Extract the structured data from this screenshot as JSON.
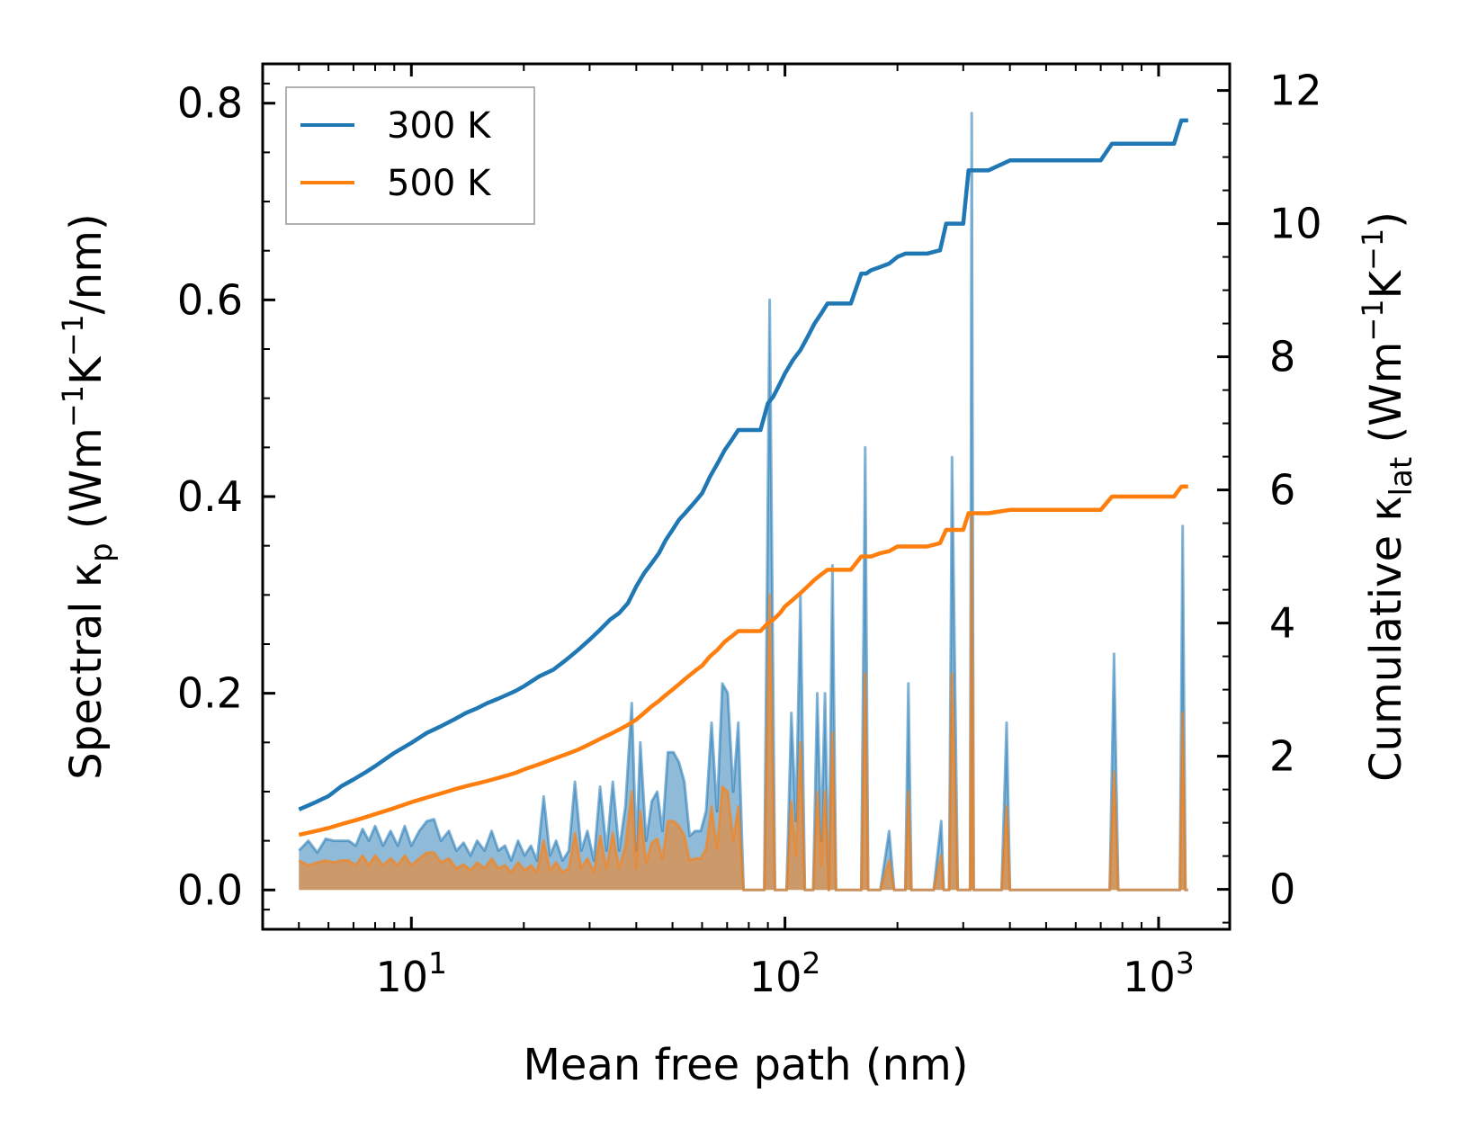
{
  "chart_data": {
    "type": "line",
    "xscale": "log",
    "xlabel": "Mean free path (nm)",
    "ylabel_left": {
      "main": "Spectral κ",
      "sub": "p",
      "unit_prefix": " (Wm",
      "exp1": "−1",
      "k": "K",
      "exp2": "−1",
      "unit_suffix": "/nm)"
    },
    "ylabel_right": {
      "main": "Cumulative κ",
      "sub": "lat",
      "unit_prefix": " (Wm",
      "exp1": "−1",
      "k": "K",
      "exp2": "−1",
      "unit_suffix": ")"
    },
    "xlim": [
      4.0,
      1550
    ],
    "ylim_left": [
      -0.04,
      0.84
    ],
    "ylim_right": [
      -0.6,
      12.4
    ],
    "x_ticks": [
      {
        "value": 10,
        "base": "10",
        "exp": "1"
      },
      {
        "value": 100,
        "base": "10",
        "exp": "2"
      },
      {
        "value": 1000,
        "base": "10",
        "exp": "3"
      }
    ],
    "y_left_ticks": [
      {
        "value": 0.0,
        "label": "0.0"
      },
      {
        "value": 0.2,
        "label": "0.2"
      },
      {
        "value": 0.4,
        "label": "0.4"
      },
      {
        "value": 0.6,
        "label": "0.6"
      },
      {
        "value": 0.8,
        "label": "0.8"
      }
    ],
    "y_right_ticks": [
      {
        "value": 0,
        "label": "0"
      },
      {
        "value": 2,
        "label": "2"
      },
      {
        "value": 4,
        "label": "4"
      },
      {
        "value": 6,
        "label": "6"
      },
      {
        "value": 8,
        "label": "8"
      },
      {
        "value": 10,
        "label": "10"
      },
      {
        "value": 12,
        "label": "12"
      }
    ],
    "legend": {
      "position": "top-left",
      "entries": [
        "300 K",
        "500 K"
      ]
    },
    "colors": {
      "300K": "#1f77b4",
      "500K": "#ff7f0e",
      "300K_fill": "#1f77b4",
      "500K_fill": "#ff7f0e"
    },
    "series": [
      {
        "name": "300 K",
        "axis": "right",
        "kind": "cumulative",
        "x": [
          5,
          5.5,
          6,
          6.5,
          7,
          7.5,
          8,
          9,
          10,
          11,
          12,
          13,
          14,
          15,
          16,
          17,
          18,
          19,
          20,
          22,
          24,
          26,
          28,
          30,
          32,
          34,
          36,
          38,
          40,
          42,
          44,
          46,
          48,
          50,
          52,
          54,
          56,
          58,
          60,
          63,
          66,
          69,
          72,
          75,
          78,
          82,
          86,
          90,
          93,
          95,
          97,
          100,
          105,
          110,
          115,
          120,
          125,
          130,
          135,
          140,
          150,
          160,
          165,
          170,
          180,
          190,
          200,
          210,
          220,
          240,
          260,
          270,
          300,
          310,
          320,
          350,
          400,
          450,
          500,
          600,
          700,
          750,
          800,
          900,
          1000,
          1100,
          1150,
          1200
        ],
        "y": [
          1.2,
          1.3,
          1.4,
          1.55,
          1.65,
          1.75,
          1.85,
          2.05,
          2.2,
          2.35,
          2.45,
          2.55,
          2.65,
          2.72,
          2.8,
          2.86,
          2.92,
          2.98,
          3.05,
          3.2,
          3.3,
          3.45,
          3.6,
          3.75,
          3.9,
          4.05,
          4.15,
          4.3,
          4.55,
          4.75,
          4.9,
          5.05,
          5.25,
          5.4,
          5.55,
          5.65,
          5.75,
          5.85,
          5.95,
          6.2,
          6.4,
          6.6,
          6.75,
          6.9,
          6.9,
          6.9,
          6.9,
          7.3,
          7.4,
          7.5,
          7.6,
          7.75,
          7.95,
          8.1,
          8.3,
          8.5,
          8.65,
          8.8,
          8.8,
          8.8,
          8.8,
          9.25,
          9.25,
          9.3,
          9.35,
          9.4,
          9.5,
          9.55,
          9.55,
          9.55,
          9.6,
          10.0,
          10.0,
          10.8,
          10.8,
          10.8,
          10.95,
          10.95,
          10.95,
          10.95,
          10.95,
          11.2,
          11.2,
          11.2,
          11.2,
          11.2,
          11.55,
          11.55
        ]
      },
      {
        "name": "500 K",
        "axis": "right",
        "kind": "cumulative",
        "x": [
          5,
          5.5,
          6,
          6.5,
          7,
          7.5,
          8,
          9,
          10,
          11,
          12,
          13,
          14,
          15,
          16,
          17,
          18,
          19,
          20,
          22,
          24,
          26,
          28,
          30,
          32,
          34,
          36,
          38,
          40,
          42,
          44,
          46,
          48,
          50,
          52,
          54,
          56,
          58,
          60,
          63,
          66,
          69,
          72,
          75,
          78,
          82,
          86,
          90,
          93,
          95,
          97,
          100,
          105,
          110,
          115,
          120,
          125,
          130,
          135,
          140,
          150,
          160,
          165,
          170,
          180,
          190,
          200,
          210,
          220,
          240,
          260,
          270,
          300,
          310,
          320,
          350,
          400,
          450,
          500,
          600,
          700,
          750,
          800,
          900,
          1000,
          1100,
          1150,
          1200
        ],
        "y": [
          0.82,
          0.87,
          0.92,
          0.98,
          1.03,
          1.08,
          1.13,
          1.22,
          1.31,
          1.38,
          1.44,
          1.5,
          1.55,
          1.59,
          1.63,
          1.67,
          1.71,
          1.75,
          1.8,
          1.88,
          1.96,
          2.03,
          2.1,
          2.18,
          2.26,
          2.33,
          2.4,
          2.47,
          2.55,
          2.65,
          2.75,
          2.83,
          2.92,
          3.0,
          3.08,
          3.16,
          3.23,
          3.3,
          3.36,
          3.5,
          3.6,
          3.72,
          3.8,
          3.88,
          3.88,
          3.88,
          3.88,
          4.0,
          4.05,
          4.1,
          4.15,
          4.25,
          4.35,
          4.45,
          4.55,
          4.65,
          4.73,
          4.8,
          4.8,
          4.8,
          4.8,
          5.0,
          5.0,
          5.0,
          5.05,
          5.08,
          5.15,
          5.15,
          5.15,
          5.15,
          5.2,
          5.4,
          5.4,
          5.65,
          5.65,
          5.65,
          5.7,
          5.7,
          5.7,
          5.7,
          5.7,
          5.9,
          5.9,
          5.9,
          5.9,
          5.9,
          6.05,
          6.05
        ]
      },
      {
        "name": "300 K spectral",
        "axis": "left",
        "kind": "spectral",
        "x": [
          5,
          5.3,
          5.6,
          5.9,
          6.2,
          6.5,
          6.8,
          7.1,
          7.4,
          7.7,
          8.0,
          8.4,
          8.8,
          9.2,
          9.6,
          10.0,
          10.5,
          11.0,
          11.5,
          12.0,
          12.6,
          13.2,
          13.8,
          14.4,
          15.0,
          15.7,
          16.4,
          17.1,
          17.8,
          18.5,
          19.3,
          20.1,
          20.9,
          21.7,
          22.6,
          23.5,
          24.4,
          25.4,
          26.4,
          27.4,
          28.5,
          29.6,
          30.8,
          32.0,
          33.3,
          34.6,
          36.0,
          37.4,
          38.9,
          40.0,
          41.0,
          42.5,
          44.0,
          45.5,
          47.0,
          48.6,
          50.3,
          52.0,
          53.8,
          55.6,
          57.5,
          59.5,
          61.5,
          63.6,
          65.8,
          68.0,
          70.3,
          72.7,
          75.0,
          77.5,
          80.0,
          82.0,
          85.0,
          88.0,
          91.0,
          94.0,
          96.0,
          98.0,
          101,
          104,
          107,
          110,
          113,
          116,
          119,
          122,
          125,
          128,
          131,
          134,
          137,
          140,
          150,
          160,
          164,
          167,
          171,
          180,
          190,
          196,
          200,
          210,
          214,
          218,
          230,
          250,
          262,
          266,
          270,
          275,
          280,
          290,
          300,
          310,
          313,
          316,
          320,
          330,
          360,
          380,
          392,
          400,
          420,
          500,
          600,
          700,
          740,
          760,
          780,
          800,
          900,
          1000,
          1100,
          1140,
          1160,
          1180,
          1200
        ],
        "y": [
          0.04,
          0.05,
          0.038,
          0.052,
          0.05,
          0.05,
          0.05,
          0.045,
          0.062,
          0.05,
          0.065,
          0.045,
          0.06,
          0.045,
          0.065,
          0.045,
          0.06,
          0.07,
          0.072,
          0.05,
          0.06,
          0.04,
          0.048,
          0.035,
          0.05,
          0.04,
          0.06,
          0.04,
          0.045,
          0.03,
          0.05,
          0.035,
          0.045,
          0.03,
          0.095,
          0.035,
          0.05,
          0.03,
          0.04,
          0.11,
          0.04,
          0.06,
          0.03,
          0.105,
          0.04,
          0.11,
          0.04,
          0.085,
          0.19,
          0.04,
          0.15,
          0.05,
          0.09,
          0.1,
          0.06,
          0.14,
          0.14,
          0.13,
          0.11,
          0.055,
          0.06,
          0.06,
          0.08,
          0.17,
          0.08,
          0.21,
          0.2,
          0.1,
          0.17,
          0.0,
          0.0,
          0.0,
          0.0,
          0.0,
          0.6,
          0.0,
          0.0,
          0.0,
          0.0,
          0.18,
          0.07,
          0.3,
          0.0,
          0.0,
          0.0,
          0.2,
          0.05,
          0.2,
          0.0,
          0.33,
          0.0,
          0.0,
          0.0,
          0.0,
          0.45,
          0.0,
          0.0,
          0.0,
          0.06,
          0.0,
          0.0,
          0.0,
          0.21,
          0.0,
          0.0,
          0.0,
          0.07,
          0.0,
          0.0,
          0.0,
          0.44,
          0.0,
          0.0,
          0.0,
          0.0,
          0.79,
          0.0,
          0.0,
          0.0,
          0.0,
          0.17,
          0.0,
          0.0,
          0.0,
          0.0,
          0.0,
          0.0,
          0.24,
          0.0,
          0.0,
          0.0,
          0.0,
          0.0,
          0.0,
          0.37,
          0.0,
          0.0
        ]
      },
      {
        "name": "500 K spectral",
        "axis": "left",
        "kind": "spectral",
        "x": [
          5,
          5.3,
          5.6,
          5.9,
          6.2,
          6.5,
          6.8,
          7.1,
          7.4,
          7.7,
          8.0,
          8.4,
          8.8,
          9.2,
          9.6,
          10.0,
          10.5,
          11.0,
          11.5,
          12.0,
          12.6,
          13.2,
          13.8,
          14.4,
          15.0,
          15.7,
          16.4,
          17.1,
          17.8,
          18.5,
          19.3,
          20.1,
          20.9,
          21.7,
          22.6,
          23.5,
          24.4,
          25.4,
          26.4,
          27.4,
          28.5,
          29.6,
          30.8,
          32.0,
          33.3,
          34.6,
          36.0,
          37.4,
          38.9,
          40.0,
          41.0,
          42.5,
          44.0,
          45.5,
          47.0,
          48.6,
          50.3,
          52.0,
          53.8,
          55.6,
          57.5,
          59.5,
          61.5,
          63.6,
          65.8,
          68.0,
          70.3,
          72.7,
          75.0,
          77.5,
          80.0,
          82.0,
          85.0,
          88.0,
          91.0,
          94.0,
          96.0,
          98.0,
          101,
          104,
          107,
          110,
          113,
          116,
          119,
          122,
          125,
          128,
          131,
          134,
          137,
          140,
          150,
          160,
          164,
          167,
          171,
          180,
          190,
          196,
          200,
          210,
          214,
          218,
          230,
          250,
          262,
          266,
          270,
          275,
          280,
          290,
          300,
          310,
          313,
          316,
          320,
          330,
          360,
          380,
          392,
          400,
          420,
          500,
          600,
          700,
          740,
          760,
          780,
          800,
          900,
          1000,
          1100,
          1140,
          1160,
          1180,
          1200
        ],
        "y": [
          0.03,
          0.025,
          0.028,
          0.03,
          0.028,
          0.03,
          0.03,
          0.025,
          0.035,
          0.025,
          0.035,
          0.025,
          0.032,
          0.025,
          0.035,
          0.025,
          0.032,
          0.038,
          0.038,
          0.028,
          0.032,
          0.022,
          0.026,
          0.02,
          0.028,
          0.022,
          0.032,
          0.022,
          0.025,
          0.018,
          0.028,
          0.02,
          0.025,
          0.018,
          0.05,
          0.02,
          0.028,
          0.018,
          0.022,
          0.058,
          0.022,
          0.032,
          0.018,
          0.055,
          0.022,
          0.058,
          0.022,
          0.045,
          0.1,
          0.022,
          0.08,
          0.028,
          0.048,
          0.052,
          0.032,
          0.07,
          0.07,
          0.065,
          0.055,
          0.03,
          0.032,
          0.032,
          0.042,
          0.085,
          0.042,
          0.105,
          0.1,
          0.05,
          0.085,
          0.0,
          0.0,
          0.0,
          0.0,
          0.0,
          0.3,
          0.0,
          0.0,
          0.0,
          0.0,
          0.09,
          0.035,
          0.15,
          0.0,
          0.0,
          0.0,
          0.1,
          0.025,
          0.1,
          0.0,
          0.16,
          0.0,
          0.0,
          0.0,
          0.0,
          0.22,
          0.0,
          0.0,
          0.0,
          0.03,
          0.0,
          0.0,
          0.0,
          0.1,
          0.0,
          0.0,
          0.0,
          0.035,
          0.0,
          0.0,
          0.0,
          0.22,
          0.0,
          0.0,
          0.0,
          0.0,
          0.38,
          0.0,
          0.0,
          0.0,
          0.0,
          0.085,
          0.0,
          0.0,
          0.0,
          0.0,
          0.0,
          0.0,
          0.12,
          0.0,
          0.0,
          0.0,
          0.0,
          0.0,
          0.0,
          0.18,
          0.0,
          0.0
        ]
      }
    ]
  }
}
